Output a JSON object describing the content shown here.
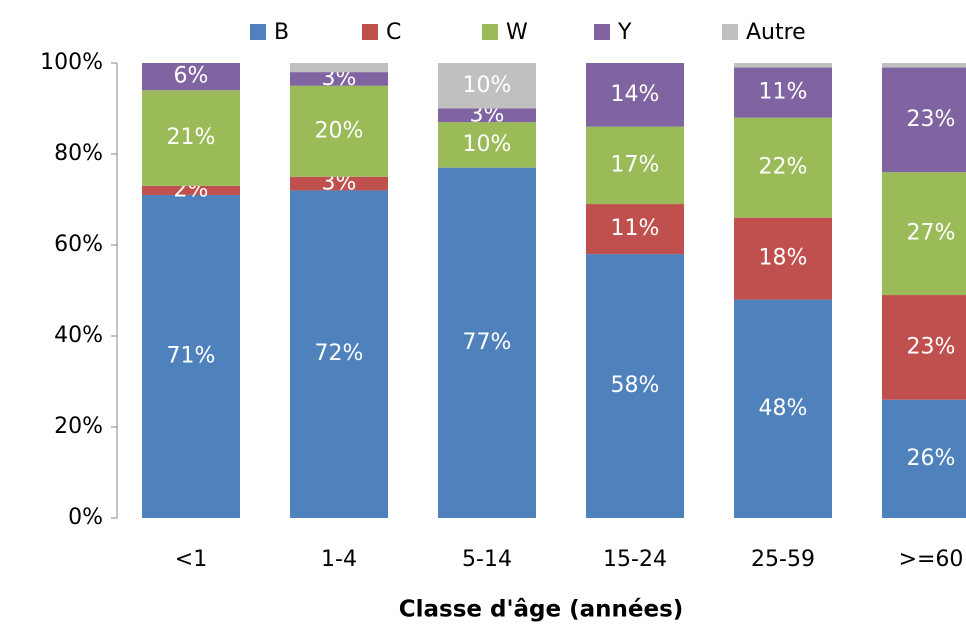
{
  "chart_data": {
    "type": "stacked_bar",
    "x_label": "Classe d'âge (années)",
    "categories": [
      "<1",
      "1-4",
      "5-14",
      "15-24",
      "25-59",
      ">=60"
    ],
    "series": [
      {
        "name": "B",
        "color": "#4f81bd",
        "values": [
          71,
          72,
          77,
          58,
          48,
          26
        ],
        "value_labels": [
          "71%",
          "72%",
          "77%",
          "58%",
          "48%",
          "26%"
        ]
      },
      {
        "name": "C",
        "color": "#c0504d",
        "values": [
          2,
          3,
          0,
          11,
          18,
          23
        ],
        "value_labels": [
          "2%",
          "3%",
          null,
          "11%",
          "18%",
          "23%"
        ]
      },
      {
        "name": "W",
        "color": "#9bbb59",
        "values": [
          21,
          20,
          10,
          17,
          22,
          27
        ],
        "value_labels": [
          "21%",
          "20%",
          "10%",
          "17%",
          "22%",
          "27%"
        ]
      },
      {
        "name": "Y",
        "color": "#8064a2",
        "values": [
          6,
          3,
          3,
          14,
          11,
          23
        ],
        "value_labels": [
          "6%",
          "3%",
          "3%",
          "14%",
          "11%",
          "23%"
        ]
      },
      {
        "name": "Autre",
        "color": "#c0c0c0",
        "values": [
          0,
          2,
          10,
          0,
          1,
          1
        ],
        "value_labels": [
          null,
          null,
          "10%",
          null,
          null,
          null
        ]
      }
    ],
    "ylim": [
      0,
      100
    ],
    "yticks": [
      {
        "value": 0,
        "label": "0%"
      },
      {
        "value": 20,
        "label": "20%"
      },
      {
        "value": 40,
        "label": "40%"
      },
      {
        "value": 60,
        "label": "60%"
      },
      {
        "value": 80,
        "label": "80%"
      },
      {
        "value": 100,
        "label": "100%"
      }
    ],
    "legend": "top"
  }
}
